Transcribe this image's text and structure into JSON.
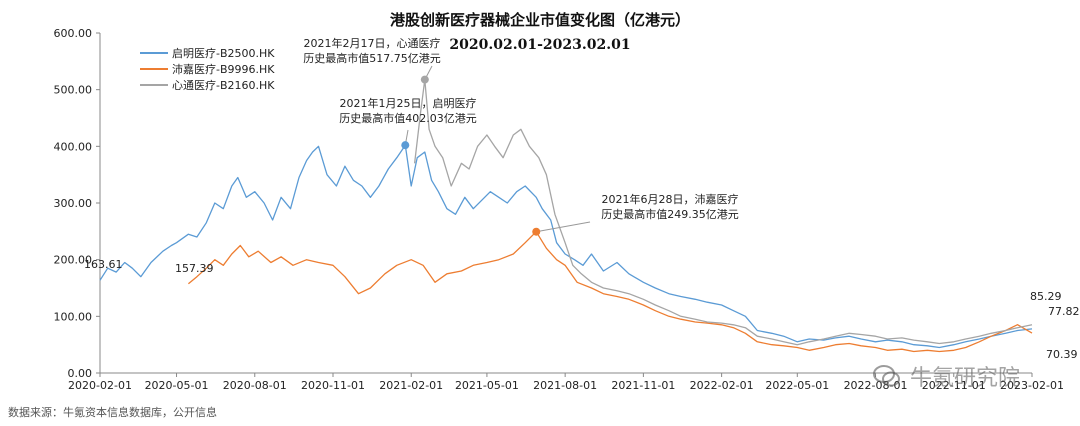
{
  "source_note": "数据来源：牛氪资本信息数据库，公开信息",
  "watermark": {
    "text": "牛氪研究院",
    "icon": "wechat-icon"
  },
  "chart_data": {
    "type": "line",
    "title": "港股创新医疗器械企业市值变化图（亿港元）",
    "subtitle": "2020.02.01-2023.02.01",
    "xlabel": "",
    "ylabel": "",
    "ylim": [
      0,
      600
    ],
    "x_range": [
      "2020-02-01",
      "2023-02-01"
    ],
    "y_ticks": [
      "0.00",
      "100.00",
      "200.00",
      "300.00",
      "400.00",
      "500.00",
      "600.00"
    ],
    "x_ticks": [
      "2020-02-01",
      "2020-05-01",
      "2020-08-01",
      "2020-11-01",
      "2021-02-01",
      "2021-05-01",
      "2021-08-01",
      "2021-11-01",
      "2022-02-01",
      "2022-05-01",
      "2022-08-01",
      "2022-11-01",
      "2023-02-01"
    ],
    "grid": false,
    "legend_position": "top-left",
    "series": [
      {
        "name": "启明医疗-B2500.HK",
        "color": "#5b9bd5",
        "points": [
          [
            "2020-02-01",
            163.61
          ],
          [
            "2020-02-10",
            185
          ],
          [
            "2020-02-20",
            178
          ],
          [
            "2020-03-01",
            195
          ],
          [
            "2020-03-10",
            185
          ],
          [
            "2020-03-20",
            170
          ],
          [
            "2020-04-01",
            195
          ],
          [
            "2020-04-15",
            215
          ],
          [
            "2020-04-25",
            225
          ],
          [
            "2020-05-01",
            230
          ],
          [
            "2020-05-15",
            245
          ],
          [
            "2020-05-25",
            240
          ],
          [
            "2020-06-05",
            265
          ],
          [
            "2020-06-15",
            300
          ],
          [
            "2020-06-25",
            290
          ],
          [
            "2020-07-05",
            330
          ],
          [
            "2020-07-12",
            345
          ],
          [
            "2020-07-22",
            310
          ],
          [
            "2020-08-01",
            320
          ],
          [
            "2020-08-12",
            300
          ],
          [
            "2020-08-22",
            270
          ],
          [
            "2020-09-01",
            310
          ],
          [
            "2020-09-12",
            290
          ],
          [
            "2020-09-22",
            345
          ],
          [
            "2020-10-01",
            375
          ],
          [
            "2020-10-08",
            390
          ],
          [
            "2020-10-15",
            400
          ],
          [
            "2020-10-25",
            350
          ],
          [
            "2020-11-05",
            330
          ],
          [
            "2020-11-15",
            365
          ],
          [
            "2020-11-25",
            340
          ],
          [
            "2020-12-05",
            330
          ],
          [
            "2020-12-15",
            310
          ],
          [
            "2020-12-25",
            330
          ],
          [
            "2021-01-05",
            360
          ],
          [
            "2021-01-15",
            380
          ],
          [
            "2021-01-25",
            402.03
          ],
          [
            "2021-02-01",
            330
          ],
          [
            "2021-02-08",
            380
          ],
          [
            "2021-02-17",
            390
          ],
          [
            "2021-02-25",
            340
          ],
          [
            "2021-03-05",
            320
          ],
          [
            "2021-03-15",
            290
          ],
          [
            "2021-03-25",
            280
          ],
          [
            "2021-04-05",
            310
          ],
          [
            "2021-04-15",
            290
          ],
          [
            "2021-04-25",
            305
          ],
          [
            "2021-05-05",
            320
          ],
          [
            "2021-05-15",
            310
          ],
          [
            "2021-05-25",
            300
          ],
          [
            "2021-06-05",
            320
          ],
          [
            "2021-06-15",
            330
          ],
          [
            "2021-06-28",
            310
          ],
          [
            "2021-07-05",
            290
          ],
          [
            "2021-07-15",
            270
          ],
          [
            "2021-07-22",
            230
          ],
          [
            "2021-08-01",
            210
          ],
          [
            "2021-08-12",
            200
          ],
          [
            "2021-08-22",
            190
          ],
          [
            "2021-09-01",
            210
          ],
          [
            "2021-09-15",
            180
          ],
          [
            "2021-10-01",
            195
          ],
          [
            "2021-10-15",
            175
          ],
          [
            "2021-11-01",
            160
          ],
          [
            "2021-11-15",
            150
          ],
          [
            "2021-12-01",
            140
          ],
          [
            "2021-12-15",
            135
          ],
          [
            "2022-01-01",
            130
          ],
          [
            "2022-01-15",
            125
          ],
          [
            "2022-02-01",
            120
          ],
          [
            "2022-02-15",
            110
          ],
          [
            "2022-03-01",
            100
          ],
          [
            "2022-03-15",
            75
          ],
          [
            "2022-04-01",
            70
          ],
          [
            "2022-04-15",
            65
          ],
          [
            "2022-05-01",
            55
          ],
          [
            "2022-05-15",
            60
          ],
          [
            "2022-06-01",
            58
          ],
          [
            "2022-06-15",
            62
          ],
          [
            "2022-07-01",
            65
          ],
          [
            "2022-07-15",
            60
          ],
          [
            "2022-08-01",
            55
          ],
          [
            "2022-08-15",
            58
          ],
          [
            "2022-09-01",
            55
          ],
          [
            "2022-09-15",
            50
          ],
          [
            "2022-10-01",
            48
          ],
          [
            "2022-10-15",
            45
          ],
          [
            "2022-11-01",
            50
          ],
          [
            "2022-11-15",
            55
          ],
          [
            "2022-12-01",
            60
          ],
          [
            "2022-12-15",
            65
          ],
          [
            "2023-01-01",
            70
          ],
          [
            "2023-01-15",
            75
          ],
          [
            "2023-02-01",
            77.82
          ]
        ]
      },
      {
        "name": "沛嘉医疗-B9996.HK",
        "color": "#ed7d31",
        "points": [
          [
            "2020-05-15",
            157.39
          ],
          [
            "2020-05-25",
            170
          ],
          [
            "2020-06-05",
            185
          ],
          [
            "2020-06-15",
            200
          ],
          [
            "2020-06-25",
            190
          ],
          [
            "2020-07-05",
            210
          ],
          [
            "2020-07-15",
            225
          ],
          [
            "2020-07-25",
            205
          ],
          [
            "2020-08-05",
            215
          ],
          [
            "2020-08-20",
            195
          ],
          [
            "2020-09-01",
            205
          ],
          [
            "2020-09-15",
            190
          ],
          [
            "2020-10-01",
            200
          ],
          [
            "2020-10-15",
            195
          ],
          [
            "2020-11-01",
            190
          ],
          [
            "2020-11-15",
            170
          ],
          [
            "2020-12-01",
            140
          ],
          [
            "2020-12-15",
            150
          ],
          [
            "2021-01-01",
            175
          ],
          [
            "2021-01-15",
            190
          ],
          [
            "2021-02-01",
            200
          ],
          [
            "2021-02-15",
            190
          ],
          [
            "2021-03-01",
            160
          ],
          [
            "2021-03-15",
            175
          ],
          [
            "2021-04-01",
            180
          ],
          [
            "2021-04-15",
            190
          ],
          [
            "2021-05-01",
            195
          ],
          [
            "2021-05-15",
            200
          ],
          [
            "2021-06-01",
            210
          ],
          [
            "2021-06-15",
            230
          ],
          [
            "2021-06-28",
            249.35
          ],
          [
            "2021-07-10",
            220
          ],
          [
            "2021-07-22",
            200
          ],
          [
            "2021-08-01",
            190
          ],
          [
            "2021-08-15",
            160
          ],
          [
            "2021-09-01",
            150
          ],
          [
            "2021-09-15",
            140
          ],
          [
            "2021-10-01",
            135
          ],
          [
            "2021-10-15",
            130
          ],
          [
            "2021-11-01",
            120
          ],
          [
            "2021-11-15",
            110
          ],
          [
            "2021-12-01",
            100
          ],
          [
            "2021-12-15",
            95
          ],
          [
            "2022-01-01",
            90
          ],
          [
            "2022-01-15",
            88
          ],
          [
            "2022-02-01",
            85
          ],
          [
            "2022-02-15",
            80
          ],
          [
            "2022-03-01",
            70
          ],
          [
            "2022-03-15",
            55
          ],
          [
            "2022-04-01",
            50
          ],
          [
            "2022-04-15",
            48
          ],
          [
            "2022-05-01",
            45
          ],
          [
            "2022-05-15",
            40
          ],
          [
            "2022-06-01",
            45
          ],
          [
            "2022-06-15",
            50
          ],
          [
            "2022-07-01",
            52
          ],
          [
            "2022-07-15",
            48
          ],
          [
            "2022-08-01",
            45
          ],
          [
            "2022-08-15",
            40
          ],
          [
            "2022-09-01",
            42
          ],
          [
            "2022-09-15",
            38
          ],
          [
            "2022-10-01",
            40
          ],
          [
            "2022-10-15",
            38
          ],
          [
            "2022-11-01",
            40
          ],
          [
            "2022-11-15",
            45
          ],
          [
            "2022-12-01",
            55
          ],
          [
            "2022-12-15",
            65
          ],
          [
            "2023-01-01",
            75
          ],
          [
            "2023-01-15",
            85.29
          ],
          [
            "2023-02-01",
            70.39
          ]
        ]
      },
      {
        "name": "心通医疗-B2160.HK",
        "color": "#a5a5a5",
        "points": [
          [
            "2021-02-05",
            370
          ],
          [
            "2021-02-12",
            460
          ],
          [
            "2021-02-17",
            517.75
          ],
          [
            "2021-02-22",
            430
          ],
          [
            "2021-03-01",
            400
          ],
          [
            "2021-03-10",
            380
          ],
          [
            "2021-03-20",
            330
          ],
          [
            "2021-04-01",
            370
          ],
          [
            "2021-04-10",
            360
          ],
          [
            "2021-04-20",
            400
          ],
          [
            "2021-05-01",
            420
          ],
          [
            "2021-05-10",
            400
          ],
          [
            "2021-05-20",
            380
          ],
          [
            "2021-06-01",
            420
          ],
          [
            "2021-06-10",
            430
          ],
          [
            "2021-06-20",
            400
          ],
          [
            "2021-07-01",
            380
          ],
          [
            "2021-07-10",
            350
          ],
          [
            "2021-07-20",
            280
          ],
          [
            "2021-08-01",
            230
          ],
          [
            "2021-08-10",
            190
          ],
          [
            "2021-08-20",
            175
          ],
          [
            "2021-09-01",
            160
          ],
          [
            "2021-09-15",
            150
          ],
          [
            "2021-10-01",
            145
          ],
          [
            "2021-10-15",
            140
          ],
          [
            "2021-11-01",
            130
          ],
          [
            "2021-11-15",
            120
          ],
          [
            "2021-12-01",
            110
          ],
          [
            "2021-12-15",
            100
          ],
          [
            "2022-01-01",
            95
          ],
          [
            "2022-01-15",
            90
          ],
          [
            "2022-02-01",
            88
          ],
          [
            "2022-02-15",
            85
          ],
          [
            "2022-03-01",
            80
          ],
          [
            "2022-03-15",
            65
          ],
          [
            "2022-04-01",
            60
          ],
          [
            "2022-04-15",
            55
          ],
          [
            "2022-05-01",
            50
          ],
          [
            "2022-05-15",
            55
          ],
          [
            "2022-06-01",
            60
          ],
          [
            "2022-06-15",
            65
          ],
          [
            "2022-07-01",
            70
          ],
          [
            "2022-07-15",
            68
          ],
          [
            "2022-08-01",
            65
          ],
          [
            "2022-08-15",
            60
          ],
          [
            "2022-09-01",
            62
          ],
          [
            "2022-09-15",
            58
          ],
          [
            "2022-10-01",
            55
          ],
          [
            "2022-10-15",
            52
          ],
          [
            "2022-11-01",
            55
          ],
          [
            "2022-11-15",
            60
          ],
          [
            "2022-12-01",
            65
          ],
          [
            "2022-12-15",
            70
          ],
          [
            "2023-01-01",
            75
          ],
          [
            "2023-01-15",
            80
          ],
          [
            "2023-02-01",
            85
          ]
        ]
      }
    ],
    "annotations": [
      {
        "series": 0,
        "date": "2021-01-25",
        "value": 402.03,
        "lines": [
          "2021年1月25日，启明医疗",
          "历史最高市值402.03亿港元"
        ]
      },
      {
        "series": 2,
        "date": "2021-02-17",
        "value": 517.75,
        "lines": [
          "2021年2月17日，心通医疗",
          "历史最高市值517.75亿港元"
        ]
      },
      {
        "series": 1,
        "date": "2021-06-28",
        "value": 249.35,
        "lines": [
          "2021年6月28日，沛嘉医疗",
          "历史最高市值249.35亿港元"
        ]
      }
    ],
    "value_labels": [
      {
        "text": "163.61"
      },
      {
        "text": "157.39"
      },
      {
        "text": "85.29"
      },
      {
        "text": "77.82"
      },
      {
        "text": "70.39"
      }
    ]
  }
}
